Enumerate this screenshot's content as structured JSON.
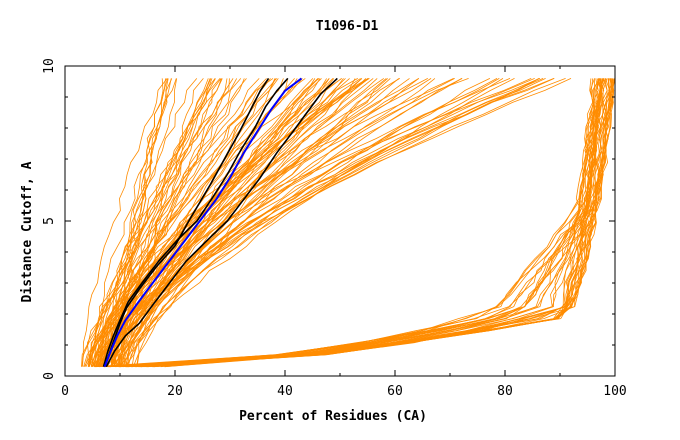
{
  "chart_data": {
    "type": "line",
    "title": "T1096-D1",
    "xlabel": "Percent of Residues (CA)",
    "ylabel": "Distance Cutoff, A",
    "xlim": [
      0,
      100
    ],
    "ylim": [
      0,
      10
    ],
    "xticks": [
      0,
      20,
      40,
      60,
      80,
      100
    ],
    "yticks": [
      0,
      5,
      10
    ],
    "grid": false,
    "legend": "none",
    "colors": {
      "models": "#ff8c00",
      "highlight_a": "#000000",
      "highlight_b": "#0000ff"
    },
    "background_series_count": 150,
    "series": [
      {
        "group": "highlight_a",
        "color": "#000000",
        "points": [
          [
            7.2,
            0.3
          ],
          [
            8.2,
            0.8
          ],
          [
            9.2,
            1.3
          ],
          [
            10.0,
            1.7
          ],
          [
            11.2,
            2.2
          ],
          [
            13.5,
            2.8
          ],
          [
            16.5,
            3.5
          ],
          [
            20.0,
            4.2
          ],
          [
            22.5,
            5.0
          ],
          [
            24.5,
            5.6
          ],
          [
            26.5,
            6.2
          ],
          [
            29.0,
            7.0
          ],
          [
            31.5,
            7.8
          ],
          [
            33.5,
            8.5
          ],
          [
            35.5,
            9.2
          ],
          [
            37.0,
            9.6
          ]
        ]
      },
      {
        "group": "highlight_a",
        "color": "#000000",
        "points": [
          [
            7.0,
            0.3
          ],
          [
            7.8,
            0.8
          ],
          [
            8.8,
            1.3
          ],
          [
            10.0,
            1.8
          ],
          [
            11.5,
            2.4
          ],
          [
            14.0,
            3.0
          ],
          [
            17.0,
            3.7
          ],
          [
            20.5,
            4.4
          ],
          [
            24.0,
            5.0
          ],
          [
            27.0,
            5.8
          ],
          [
            29.5,
            6.5
          ],
          [
            32.0,
            7.3
          ],
          [
            34.5,
            8.0
          ],
          [
            36.5,
            8.7
          ],
          [
            38.5,
            9.2
          ],
          [
            40.5,
            9.6
          ]
        ]
      },
      {
        "group": "highlight_a",
        "color": "#000000",
        "points": [
          [
            7.5,
            0.3
          ],
          [
            9.0,
            0.8
          ],
          [
            11.0,
            1.3
          ],
          [
            13.5,
            1.7
          ],
          [
            16.0,
            2.3
          ],
          [
            19.0,
            3.0
          ],
          [
            22.0,
            3.7
          ],
          [
            26.0,
            4.4
          ],
          [
            29.5,
            5.0
          ],
          [
            32.5,
            5.7
          ],
          [
            35.5,
            6.4
          ],
          [
            38.5,
            7.2
          ],
          [
            41.5,
            7.9
          ],
          [
            44.0,
            8.5
          ],
          [
            46.5,
            9.1
          ],
          [
            49.5,
            9.6
          ]
        ]
      },
      {
        "group": "highlight_b",
        "color": "#0000ff",
        "points": [
          [
            7.2,
            0.3
          ],
          [
            8.3,
            0.8
          ],
          [
            9.5,
            1.3
          ],
          [
            11.0,
            1.8
          ],
          [
            13.0,
            2.3
          ],
          [
            15.5,
            2.9
          ],
          [
            18.5,
            3.6
          ],
          [
            21.5,
            4.3
          ],
          [
            24.5,
            5.0
          ],
          [
            27.5,
            5.7
          ],
          [
            30.0,
            6.4
          ],
          [
            32.5,
            7.2
          ],
          [
            35.0,
            7.9
          ],
          [
            37.5,
            8.6
          ],
          [
            40.0,
            9.2
          ],
          [
            43.0,
            9.6
          ]
        ]
      }
    ]
  }
}
